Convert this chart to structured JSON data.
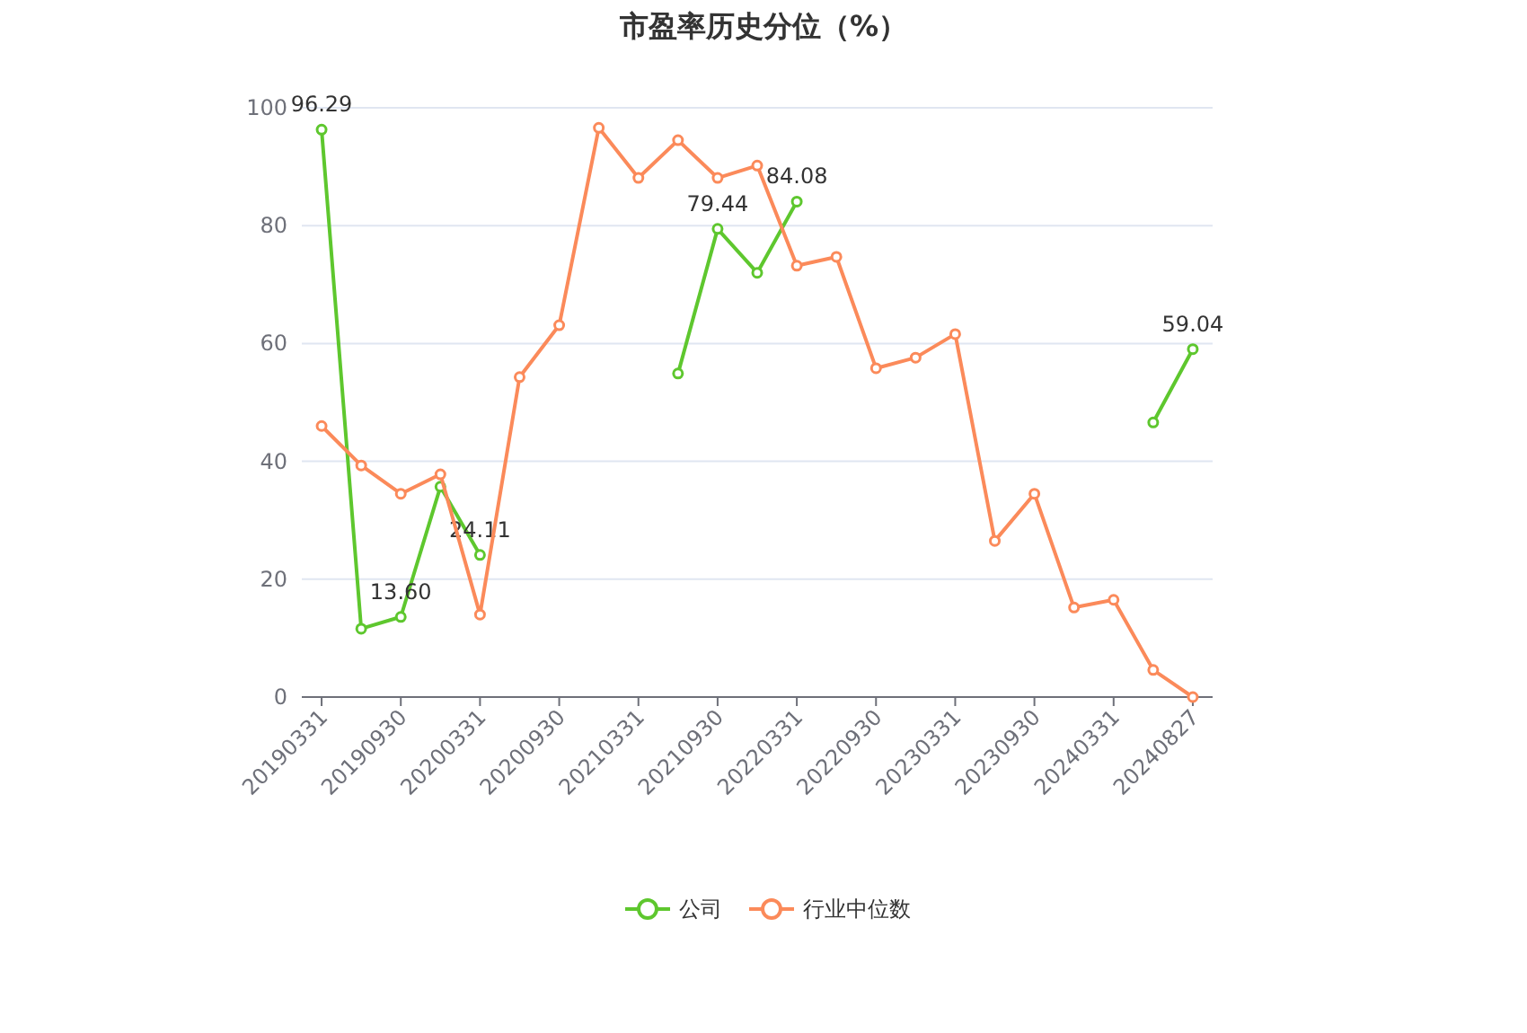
{
  "chart_data": {
    "type": "line",
    "title": "市盈率历史分位（%）",
    "categories": [
      "20190331",
      null,
      "20190930",
      null,
      "20200331",
      null,
      "20200930",
      null,
      "20210331",
      null,
      "20210930",
      null,
      "20220331",
      null,
      "20220930",
      null,
      "20230331",
      null,
      "20230930",
      null,
      "20240331",
      null,
      "20240827"
    ],
    "series": [
      {
        "name": "公司",
        "color": "#5ec72e",
        "values": [
          96.29,
          11.6,
          13.6,
          35.7,
          24.11,
          null,
          null,
          null,
          null,
          54.9,
          79.44,
          72.0,
          84.08,
          null,
          null,
          null,
          null,
          null,
          null,
          null,
          null,
          46.6,
          59.04
        ],
        "value_labels": [
          "96.29",
          null,
          "13.60",
          null,
          "24.11",
          null,
          null,
          null,
          null,
          null,
          "79.44",
          null,
          "84.08",
          null,
          null,
          null,
          null,
          null,
          null,
          null,
          null,
          null,
          "59.04"
        ]
      },
      {
        "name": "行业中位数",
        "color": "#fb8a5a",
        "values": [
          46.0,
          39.3,
          34.5,
          37.8,
          14.0,
          54.3,
          63.1,
          96.6,
          88.1,
          94.5,
          88.1,
          90.2,
          73.2,
          74.7,
          55.8,
          57.6,
          61.6,
          26.5,
          34.5,
          15.2,
          16.5,
          4.6,
          0.0
        ]
      }
    ],
    "ylim": [
      0,
      100
    ],
    "yticks": [
      0,
      20,
      40,
      60,
      80,
      100
    ],
    "grid": "y",
    "legend": "bottom",
    "marker": "circle",
    "line_style": "solid"
  }
}
